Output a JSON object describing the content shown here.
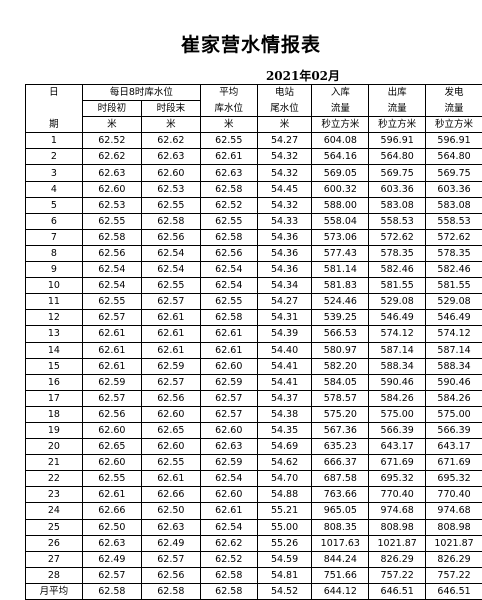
{
  "title": "崔家营水情报表",
  "subtitle": "2021年02月",
  "header": {
    "row1": [
      "日",
      "每日8时库水位",
      "平均",
      "电站",
      "入库",
      "出库",
      "发电"
    ],
    "row2": [
      "",
      "时段初",
      "时段末",
      "库水位",
      "尾水位",
      "流量",
      "流量",
      "流量"
    ],
    "row3": [
      "期",
      "米",
      "米",
      "米",
      "米",
      "秒立方米",
      "秒立方米",
      "秒立方米"
    ]
  },
  "rows": [
    [
      "1",
      "62.52",
      "62.62",
      "62.55",
      "54.27",
      "604.08",
      "596.91",
      "596.91"
    ],
    [
      "2",
      "62.62",
      "62.63",
      "62.61",
      "54.32",
      "564.16",
      "564.80",
      "564.80"
    ],
    [
      "3",
      "62.63",
      "62.60",
      "62.63",
      "54.32",
      "569.05",
      "569.75",
      "569.75"
    ],
    [
      "4",
      "62.60",
      "62.53",
      "62.58",
      "54.45",
      "600.32",
      "603.36",
      "603.36"
    ],
    [
      "5",
      "62.53",
      "62.55",
      "62.52",
      "54.32",
      "588.00",
      "583.08",
      "583.08"
    ],
    [
      "6",
      "62.55",
      "62.58",
      "62.55",
      "54.33",
      "558.04",
      "558.53",
      "558.53"
    ],
    [
      "7",
      "62.58",
      "62.56",
      "62.58",
      "54.36",
      "573.06",
      "572.62",
      "572.62"
    ],
    [
      "8",
      "62.56",
      "62.54",
      "62.56",
      "54.36",
      "577.43",
      "578.35",
      "578.35"
    ],
    [
      "9",
      "62.54",
      "62.54",
      "62.54",
      "54.36",
      "581.14",
      "582.46",
      "582.46"
    ],
    [
      "10",
      "62.54",
      "62.55",
      "62.54",
      "54.34",
      "581.83",
      "581.55",
      "581.55"
    ],
    [
      "11",
      "62.55",
      "62.57",
      "62.55",
      "54.27",
      "524.46",
      "529.08",
      "529.08"
    ],
    [
      "12",
      "62.57",
      "62.61",
      "62.58",
      "54.31",
      "539.25",
      "546.49",
      "546.49"
    ],
    [
      "13",
      "62.61",
      "62.61",
      "62.61",
      "54.39",
      "566.53",
      "574.12",
      "574.12"
    ],
    [
      "14",
      "62.61",
      "62.61",
      "62.61",
      "54.40",
      "580.97",
      "587.14",
      "587.14"
    ],
    [
      "15",
      "62.61",
      "62.59",
      "62.60",
      "54.41",
      "582.20",
      "588.34",
      "588.34"
    ],
    [
      "16",
      "62.59",
      "62.57",
      "62.59",
      "54.41",
      "584.05",
      "590.46",
      "590.46"
    ],
    [
      "17",
      "62.57",
      "62.56",
      "62.57",
      "54.37",
      "578.57",
      "584.26",
      "584.26"
    ],
    [
      "18",
      "62.56",
      "62.60",
      "62.57",
      "54.38",
      "575.20",
      "575.00",
      "575.00"
    ],
    [
      "19",
      "62.60",
      "62.65",
      "62.60",
      "54.35",
      "567.36",
      "566.39",
      "566.39"
    ],
    [
      "20",
      "62.65",
      "62.60",
      "62.63",
      "54.69",
      "635.23",
      "643.17",
      "643.17"
    ],
    [
      "21",
      "62.60",
      "62.55",
      "62.59",
      "54.62",
      "666.37",
      "671.69",
      "671.69"
    ],
    [
      "22",
      "62.55",
      "62.61",
      "62.54",
      "54.70",
      "687.58",
      "695.32",
      "695.32"
    ],
    [
      "23",
      "62.61",
      "62.66",
      "62.60",
      "54.88",
      "763.66",
      "770.40",
      "770.40"
    ],
    [
      "24",
      "62.66",
      "62.50",
      "62.61",
      "55.21",
      "965.05",
      "974.68",
      "974.68"
    ],
    [
      "25",
      "62.50",
      "62.63",
      "62.54",
      "55.00",
      "808.35",
      "808.98",
      "808.98"
    ],
    [
      "26",
      "62.63",
      "62.49",
      "62.62",
      "55.26",
      "1017.63",
      "1021.87",
      "1021.87"
    ],
    [
      "27",
      "62.49",
      "62.57",
      "62.52",
      "54.59",
      "844.24",
      "826.29",
      "826.29"
    ],
    [
      "28",
      "62.57",
      "62.56",
      "62.58",
      "54.81",
      "751.66",
      "757.22",
      "757.22"
    ]
  ],
  "footer": [
    "月平均",
    "62.58",
    "62.58",
    "62.58",
    "54.52",
    "644.12",
    "646.51",
    "646.51"
  ]
}
